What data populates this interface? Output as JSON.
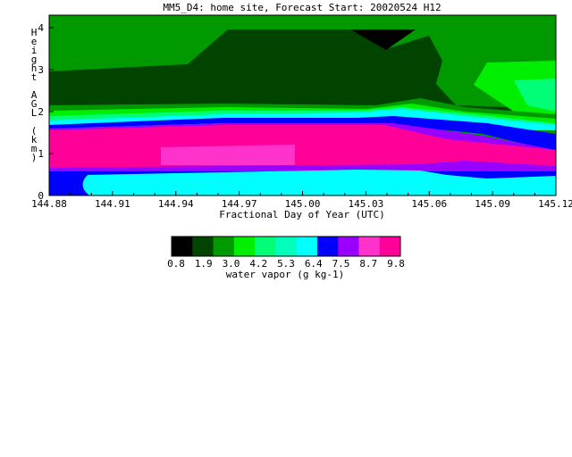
{
  "chart_data": {
    "type": "heatmap",
    "title": "MM5_D4: home site,  Forecast Start: 20020524 H12",
    "xlabel": "Fractional Day of Year (UTC)",
    "ylabel": "Height AGL (km)",
    "x_ticks": [
      "144.88",
      "144.91",
      "144.94",
      "144.97",
      "145.00",
      "145.03",
      "145.06",
      "145.09",
      "145.12"
    ],
    "y_ticks": [
      "0",
      "1",
      "2",
      "3",
      "4"
    ],
    "xlim": [
      144.88,
      145.12
    ],
    "ylim": [
      0,
      4.3
    ],
    "colorbar": {
      "label": "water vapor (g kg-1)",
      "tick_labels": [
        "0.8",
        "1.9",
        "3.0",
        "4.2",
        "5.3",
        "6.4",
        "7.5",
        "8.7",
        "9.8"
      ],
      "colors": [
        "#000000",
        "#004400",
        "#009900",
        "#00ee00",
        "#00ff77",
        "#00ffbb",
        "#00ffff",
        "#0000ff",
        "#9900ff",
        "#ff33cc",
        "#ff0099"
      ]
    },
    "contour_bands": [
      {
        "level": "0.8-1.9",
        "color": "#004400"
      },
      {
        "level": "1.9-3.0",
        "color": "#009900"
      },
      {
        "level": "3.0-4.2",
        "color": "#00ee00"
      },
      {
        "level": "4.2-5.3",
        "color": "#00ff77"
      },
      {
        "level": "5.3-6.4",
        "color": "#00ffff"
      },
      {
        "level": "6.4-7.5",
        "color": "#0000ff"
      },
      {
        "level": "7.5-8.7",
        "color": "#9900ff"
      },
      {
        "level": "8.7-9.8",
        "color": "#ff0099"
      }
    ]
  }
}
